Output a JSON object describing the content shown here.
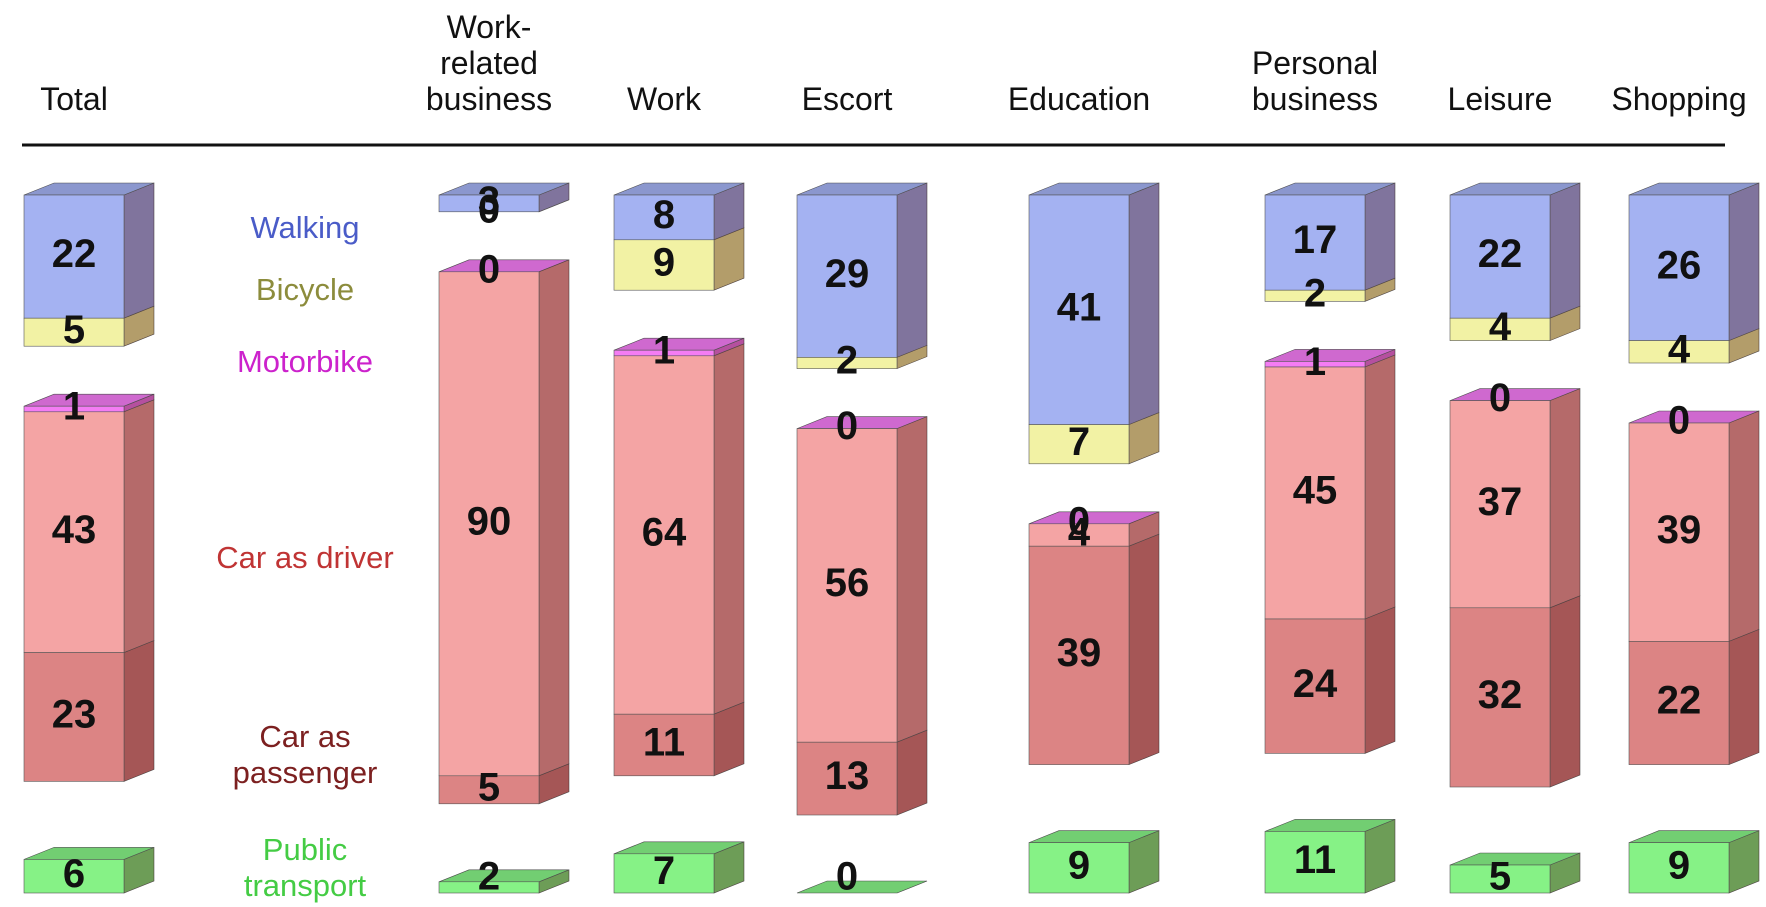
{
  "chart_data": {
    "type": "stacked-bar-3d",
    "categories": [
      "Total",
      "Work-related business",
      "Work",
      "Escort",
      "Education",
      "Personal business",
      "Leisure",
      "Shopping"
    ],
    "series": [
      {
        "name": "Walking",
        "color": "#a4b2f2",
        "label_color": "#4a5cc8",
        "values": [
          22,
          3,
          8,
          29,
          41,
          17,
          22,
          26
        ]
      },
      {
        "name": "Bicycle",
        "color": "#f2f2a4",
        "label_color": "#8c8c3c",
        "values": [
          5,
          0,
          9,
          2,
          7,
          2,
          4,
          4
        ]
      },
      {
        "name": "Motorbike",
        "color": "#f47cf4",
        "label_color": "#cc22cc",
        "values": [
          1,
          0,
          1,
          0,
          0,
          1,
          0,
          0
        ]
      },
      {
        "name": "Car as driver",
        "color": "#f4a4a4",
        "label_color": "#c03434",
        "values": [
          43,
          90,
          64,
          56,
          4,
          45,
          37,
          39
        ]
      },
      {
        "name": "Car as passenger",
        "color": "#dc8484",
        "label_color": "#7c2020",
        "values": [
          23,
          5,
          11,
          13,
          39,
          24,
          32,
          22
        ]
      },
      {
        "name": "Public transport",
        "color": "#86f286",
        "label_color": "#44cc44",
        "values": [
          6,
          2,
          7,
          0,
          9,
          11,
          5,
          9
        ]
      }
    ]
  }
}
